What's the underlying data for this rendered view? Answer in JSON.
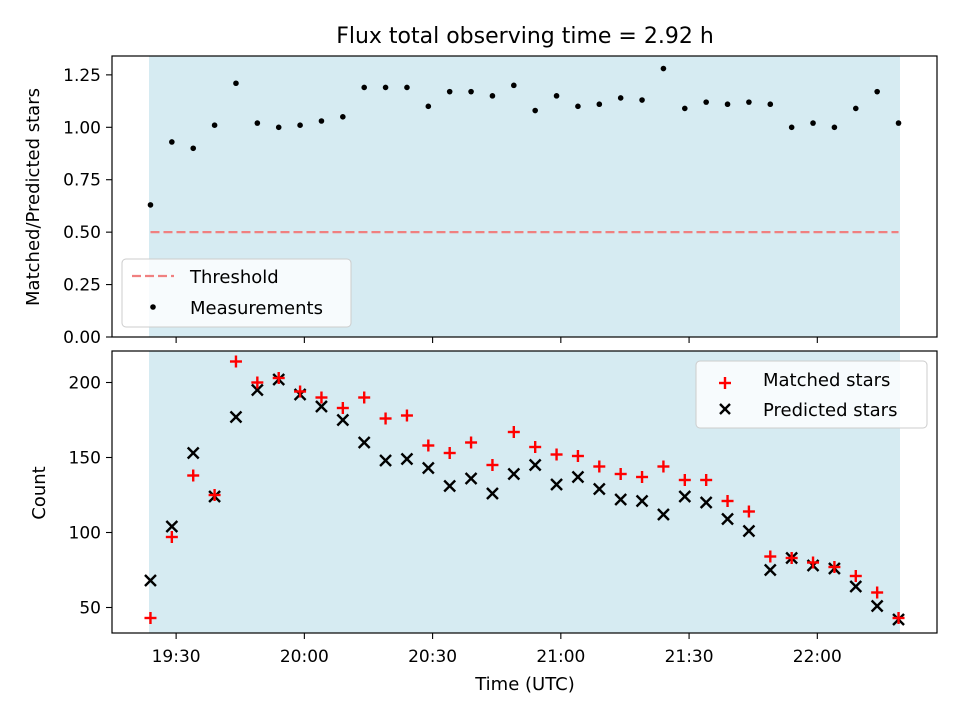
{
  "title": "Flux total observing time = 2.92 h",
  "colors": {
    "observing_band": "#add8e6",
    "threshold": "#f08080",
    "matched": "#ff0000",
    "predicted": "#000000",
    "measurements": "#000000"
  },
  "chart_data": [
    {
      "type": "scatter",
      "ylabel": "Matched/Predicted stars",
      "ylim": [
        0.0,
        1.34
      ],
      "yticks": [
        0.0,
        0.25,
        0.5,
        0.75,
        1.0,
        1.25
      ],
      "ytick_labels": [
        "0.00",
        "0.25",
        "0.50",
        "0.75",
        "1.00",
        "1.25"
      ],
      "threshold": 0.5,
      "observing_window": [
        "19:24",
        "22:19"
      ],
      "legend_position": "lower-left",
      "series": [
        {
          "name": "Threshold",
          "kind": "line",
          "values": [
            0.5,
            0.5
          ]
        },
        {
          "name": "Measurements",
          "kind": "point",
          "x": [
            "19:24",
            "19:29",
            "19:34",
            "19:39",
            "19:44",
            "19:49",
            "19:54",
            "19:59",
            "20:04",
            "20:09",
            "20:14",
            "20:19",
            "20:24",
            "20:29",
            "20:34",
            "20:39",
            "20:44",
            "20:49",
            "20:54",
            "20:59",
            "21:04",
            "21:09",
            "21:14",
            "21:19",
            "21:24",
            "21:29",
            "21:34",
            "21:39",
            "21:44",
            "21:49",
            "21:54",
            "21:59",
            "22:04",
            "22:09",
            "22:14",
            "22:19"
          ],
          "y": [
            0.63,
            0.93,
            0.9,
            1.01,
            1.21,
            1.02,
            1.0,
            1.01,
            1.03,
            1.05,
            1.19,
            1.19,
            1.19,
            1.1,
            1.17,
            1.17,
            1.15,
            1.2,
            1.08,
            1.15,
            1.1,
            1.11,
            1.14,
            1.13,
            1.28,
            1.09,
            1.12,
            1.11,
            1.12,
            1.11,
            1.0,
            1.02,
            1.0,
            1.09,
            1.17,
            1.02
          ]
        }
      ]
    },
    {
      "type": "scatter",
      "xlabel": "Time (UTC)",
      "ylabel": "Count",
      "ylim": [
        33,
        221
      ],
      "yticks": [
        50,
        100,
        150,
        200
      ],
      "ytick_labels": [
        "50",
        "100",
        "150",
        "200"
      ],
      "xlim": [
        "19:15",
        "22:28"
      ],
      "xticks": [
        "19:30",
        "20:00",
        "20:30",
        "21:00",
        "21:30",
        "22:00"
      ],
      "observing_window": [
        "19:24",
        "22:19"
      ],
      "legend_position": "upper-right",
      "x": [
        "19:24",
        "19:29",
        "19:34",
        "19:39",
        "19:44",
        "19:49",
        "19:54",
        "19:59",
        "20:04",
        "20:09",
        "20:14",
        "20:19",
        "20:24",
        "20:29",
        "20:34",
        "20:39",
        "20:44",
        "20:49",
        "20:54",
        "20:59",
        "21:04",
        "21:09",
        "21:14",
        "21:19",
        "21:24",
        "21:29",
        "21:34",
        "21:39",
        "21:44",
        "21:49",
        "21:54",
        "21:59",
        "22:04",
        "22:09",
        "22:14",
        "22:19"
      ],
      "series": [
        {
          "name": "Matched stars",
          "marker": "plus",
          "values": [
            43,
            97,
            138,
            125,
            214,
            200,
            203,
            194,
            190,
            183,
            190,
            176,
            178,
            158,
            153,
            160,
            145,
            167,
            157,
            152,
            151,
            144,
            139,
            137,
            144,
            135,
            135,
            121,
            114,
            84,
            83,
            80,
            77,
            71,
            60,
            43
          ]
        },
        {
          "name": "Predicted stars",
          "marker": "x",
          "values": [
            68,
            104,
            153,
            124,
            177,
            195,
            202,
            192,
            184,
            175,
            160,
            148,
            149,
            143,
            131,
            136,
            126,
            139,
            145,
            132,
            137,
            129,
            122,
            121,
            112,
            124,
            120,
            109,
            101,
            75,
            83,
            78,
            76,
            64,
            51,
            42
          ]
        }
      ]
    }
  ]
}
